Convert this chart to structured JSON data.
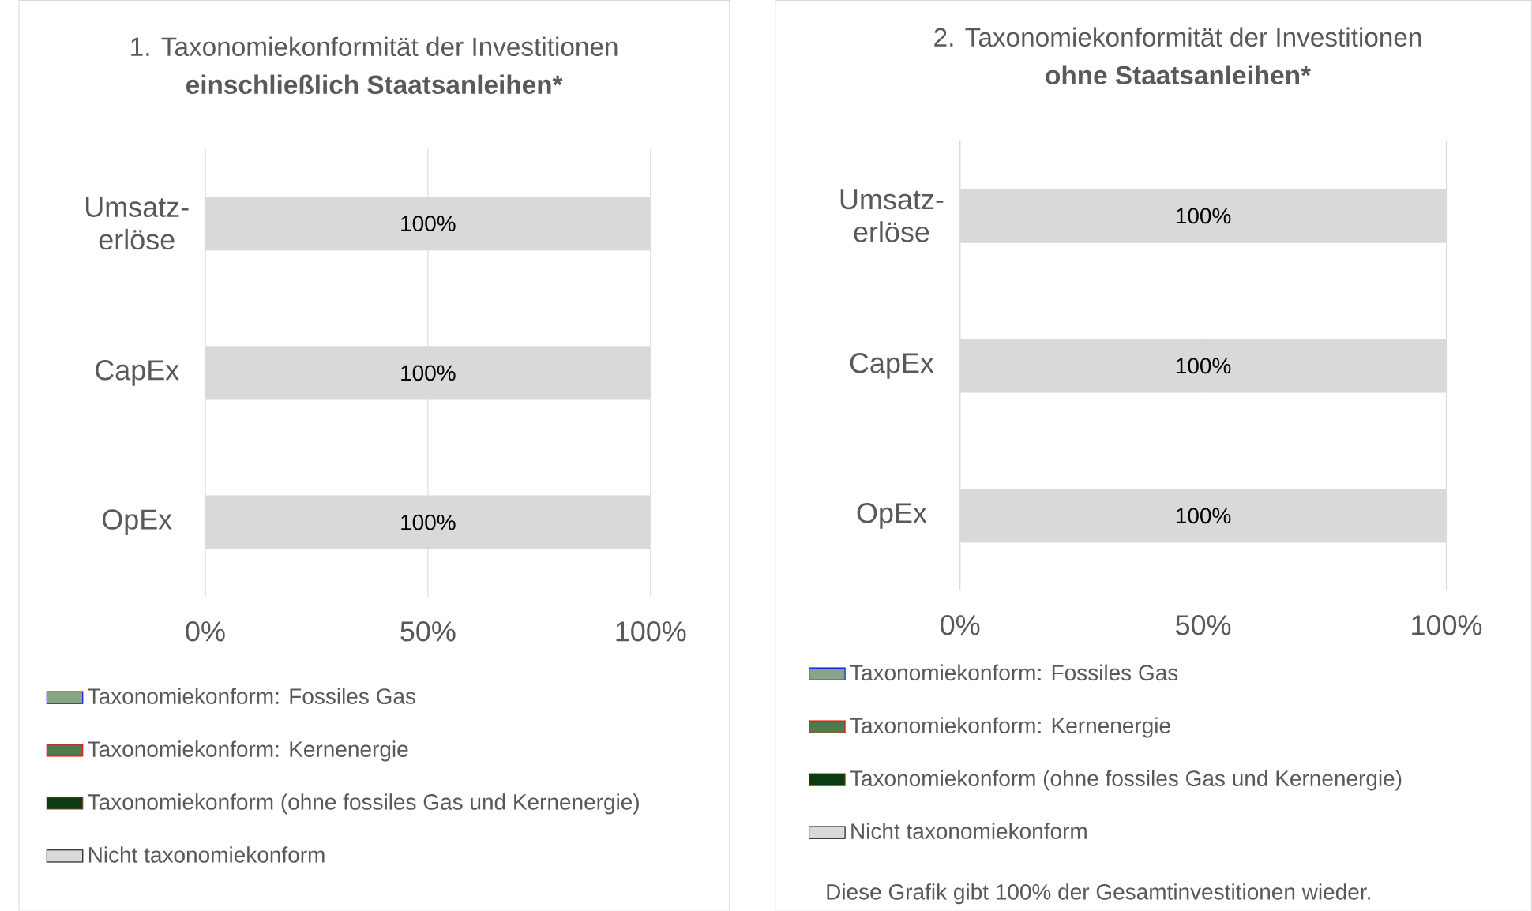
{
  "chart_data": [
    {
      "type": "bar",
      "orientation": "horizontal",
      "stacked": true,
      "title": "1. Taxonomiekonformität der Investitionen",
      "subtitle": "einschließlich Staatsanleihen*",
      "categories": [
        "Umsatz- erlöse",
        "CapEx",
        "OpEx"
      ],
      "series": [
        {
          "name": "Taxonomiekonform: Fossiles Gas",
          "color": "#85a585",
          "values": [
            0,
            0,
            0
          ]
        },
        {
          "name": "Taxonomiekonform: Kernenergie",
          "color": "#4e7a50",
          "values": [
            0,
            0,
            0
          ]
        },
        {
          "name": "Taxonomiekonform (ohne fossiles Gas und Kernenergie)",
          "color": "#0b3b10",
          "values": [
            0,
            0,
            0
          ]
        },
        {
          "name": "Nicht taxonomiekonform",
          "color": "#d9d9d9",
          "values": [
            100,
            100,
            100
          ],
          "value_labels": [
            "100%",
            "100%",
            "100%"
          ]
        }
      ],
      "xlim": [
        0,
        100
      ],
      "xticks": [
        {
          "value": 0,
          "label": "0%"
        },
        {
          "value": 50,
          "label": "50%"
        },
        {
          "value": 100,
          "label": "100%"
        }
      ],
      "grid": "x",
      "legend": "bottom"
    },
    {
      "type": "bar",
      "orientation": "horizontal",
      "stacked": true,
      "title": "2. Taxonomiekonformität der Investitionen",
      "subtitle": "ohne Staatsanleihen*",
      "categories": [
        "Umsatz- erlöse",
        "CapEx",
        "OpEx"
      ],
      "series": [
        {
          "name": "Taxonomiekonform: Fossiles Gas",
          "color": "#85a585",
          "values": [
            0,
            0,
            0
          ]
        },
        {
          "name": "Taxonomiekonform: Kernenergie",
          "color": "#4e7a50",
          "values": [
            0,
            0,
            0
          ]
        },
        {
          "name": "Taxonomiekonform (ohne fossiles Gas und Kernenergie)",
          "color": "#0b3b10",
          "values": [
            0,
            0,
            0
          ]
        },
        {
          "name": "Nicht taxonomiekonform",
          "color": "#d9d9d9",
          "values": [
            100,
            100,
            100
          ],
          "value_labels": [
            "100%",
            "100%",
            "100%"
          ]
        }
      ],
      "xlim": [
        0,
        100
      ],
      "xticks": [
        {
          "value": 0,
          "label": "0%"
        },
        {
          "value": 50,
          "label": "50%"
        },
        {
          "value": 100,
          "label": "100%"
        }
      ],
      "grid": "x",
      "legend": "bottom",
      "annotations": [
        "Diese Grafik gibt 100% der Gesamtinvestitionen wieder."
      ]
    }
  ]
}
